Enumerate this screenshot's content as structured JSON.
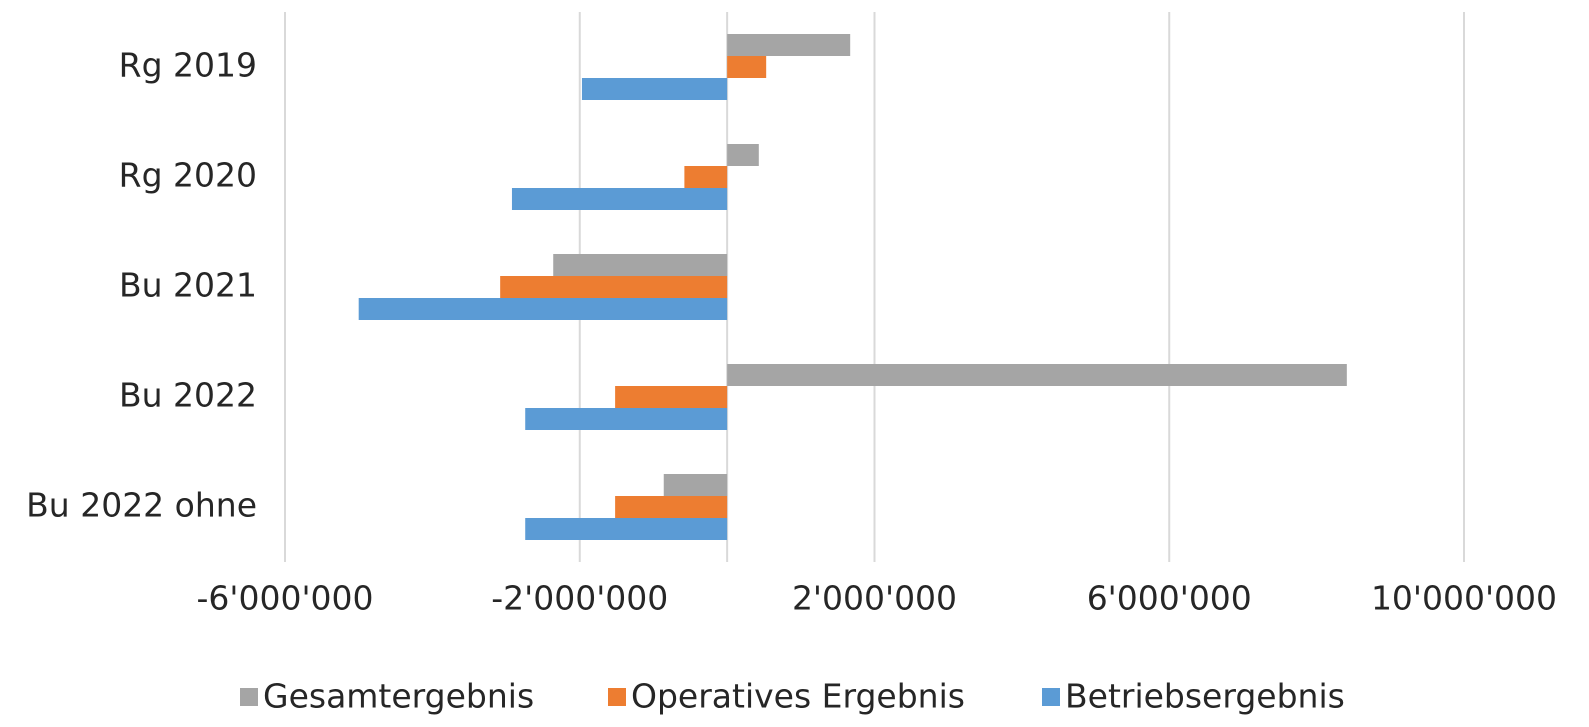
{
  "chart_data": {
    "type": "hbar",
    "categories": [
      "Rg 2019",
      "Rg 2020",
      "Bu 2021",
      "Bu 2022",
      "Bu 2022 ohne"
    ],
    "series": [
      {
        "name": "Gesamtergebnis",
        "color": "#a5a5a5",
        "values": [
          1670000,
          430000,
          -2360000,
          8410000,
          -860000
        ]
      },
      {
        "name": "Operatives Ergebnis",
        "color": "#ed7d31",
        "values": [
          530000,
          -580000,
          -3080000,
          -1520000,
          -1520000
        ]
      },
      {
        "name": "Betriebsergebnis",
        "color": "#5b9bd5",
        "values": [
          -1970000,
          -2920000,
          -5000000,
          -2740000,
          -2740000
        ]
      }
    ],
    "xlim": [
      -6000000,
      10000000
    ],
    "xticks": [
      {
        "value": -6000000,
        "label": "-6'000'000"
      },
      {
        "value": -2000000,
        "label": "-2'000'000"
      },
      {
        "value": 2000000,
        "label": "2'000'000"
      },
      {
        "value": 6000000,
        "label": "6'000'000"
      },
      {
        "value": 10000000,
        "label": "10'000'000"
      }
    ],
    "grid": true,
    "legend": "bottom"
  }
}
